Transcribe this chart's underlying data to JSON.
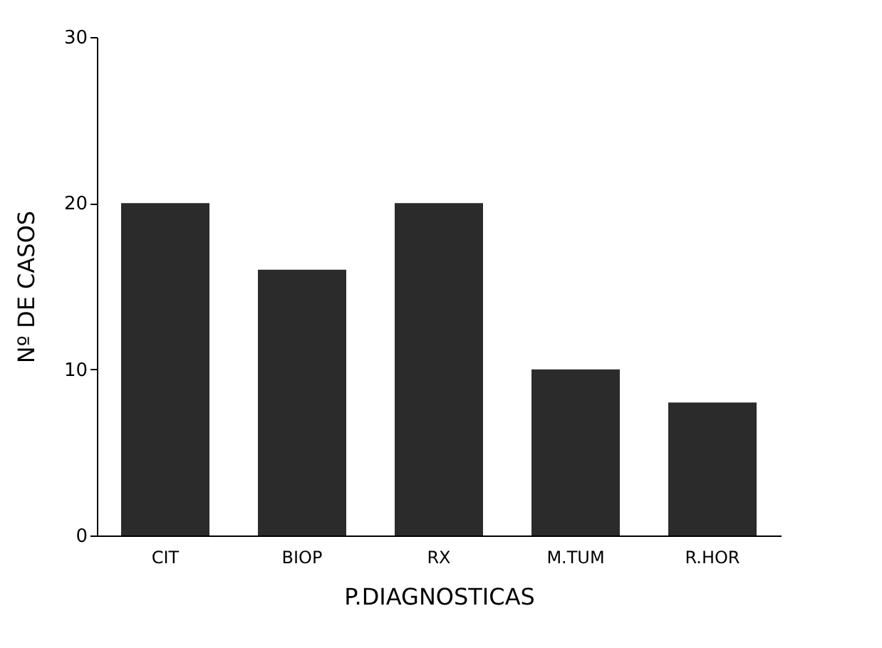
{
  "chart_data": {
    "type": "bar",
    "xlabel": "P.DIAGNOSTICAS",
    "ylabel": "Nº DE CASOS",
    "categories": [
      "CIT",
      "BIOP",
      "RX",
      "M.TUM",
      "R.HOR"
    ],
    "values": [
      20,
      16,
      20,
      10,
      8
    ],
    "color": "#2b2b2b",
    "ylim": [
      0,
      30
    ],
    "yticks": [
      0,
      10,
      20,
      30
    ],
    "grid": false
  }
}
